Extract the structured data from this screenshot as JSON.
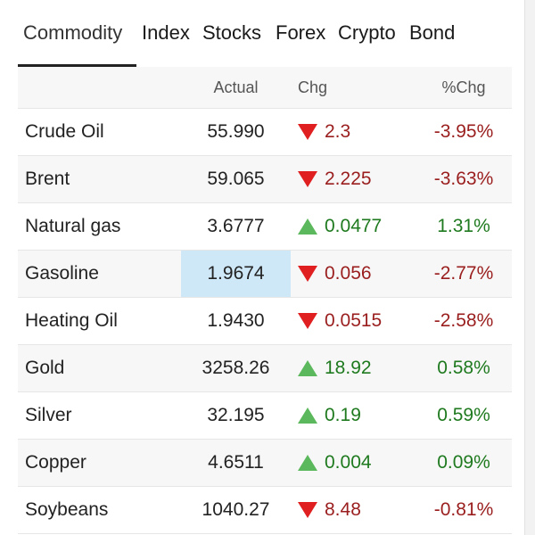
{
  "tabs": [
    "Commodity",
    "Index",
    "Stocks",
    "Forex",
    "Crypto",
    "Bond"
  ],
  "active_tab": "Commodity",
  "columns": {
    "name": "",
    "actual": "Actual",
    "chg": "Chg",
    "pct": "%Chg"
  },
  "colors": {
    "up": "#1f7a1f",
    "down": "#9a1e1e",
    "up_arrow": "#5cb85c",
    "down_arrow": "#e02020",
    "highlight": "#cfe8f7"
  },
  "rows": [
    {
      "name": "Crude Oil",
      "actual": "55.990",
      "chg": "2.3",
      "pct": "-3.95%",
      "direction": "down"
    },
    {
      "name": "Brent",
      "actual": "59.065",
      "chg": "2.225",
      "pct": "-3.63%",
      "direction": "down"
    },
    {
      "name": "Natural gas",
      "actual": "3.6777",
      "chg": "0.0477",
      "pct": "1.31%",
      "direction": "up"
    },
    {
      "name": "Gasoline",
      "actual": "1.9674",
      "chg": "0.056",
      "pct": "-2.77%",
      "direction": "down",
      "highlighted": true
    },
    {
      "name": "Heating Oil",
      "actual": "1.9430",
      "chg": "0.0515",
      "pct": "-2.58%",
      "direction": "down"
    },
    {
      "name": "Gold",
      "actual": "3258.26",
      "chg": "18.92",
      "pct": "0.58%",
      "direction": "up"
    },
    {
      "name": "Silver",
      "actual": "32.195",
      "chg": "0.19",
      "pct": "0.59%",
      "direction": "up"
    },
    {
      "name": "Copper",
      "actual": "4.6511",
      "chg": "0.004",
      "pct": "0.09%",
      "direction": "up"
    },
    {
      "name": "Soybeans",
      "actual": "1040.27",
      "chg": "8.48",
      "pct": "-0.81%",
      "direction": "down"
    }
  ]
}
